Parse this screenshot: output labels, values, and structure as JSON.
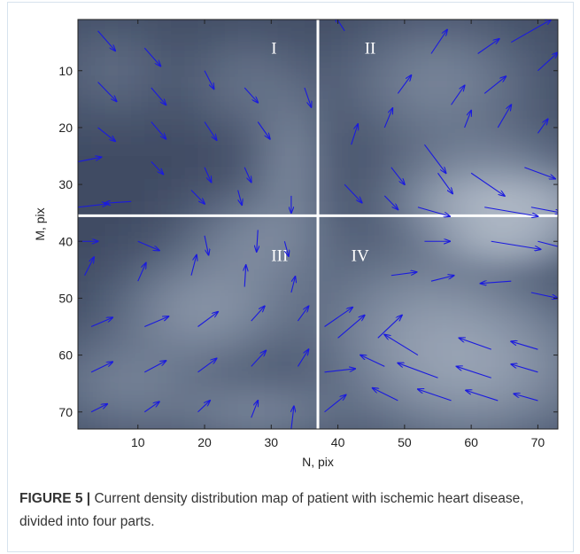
{
  "caption": {
    "label": "FIGURE 5 |",
    "text": "Current density distribution map of patient with ischemic heart disease, divided into four parts."
  },
  "chart_data": {
    "type": "heatmap",
    "title": "",
    "xlabel": "N, pix",
    "ylabel": "M, pix",
    "xlim": [
      1,
      73
    ],
    "ylim": [
      1,
      73
    ],
    "y_inverted": true,
    "xticks": [
      10,
      20,
      30,
      40,
      50,
      60,
      70
    ],
    "yticks": [
      10,
      20,
      30,
      40,
      50,
      60,
      70
    ],
    "colormap": "bone (dark = low, light = high)",
    "divider": {
      "n": 37,
      "m": 35.5,
      "color": "#ffffff"
    },
    "quadrant_labels": [
      {
        "text": "I",
        "n": 30,
        "m": 7
      },
      {
        "text": "II",
        "n": 44,
        "m": 7
      },
      {
        "text": "III",
        "n": 30,
        "m": 43.5
      },
      {
        "text": "IV",
        "n": 42,
        "m": 43.5
      }
    ],
    "intensity_blobs": [
      {
        "n": 66,
        "m": 34,
        "sn": 8,
        "sm": 3.5,
        "a": 1.0
      },
      {
        "n": 62,
        "m": 30,
        "sn": 9,
        "sm": 6,
        "a": 0.45
      },
      {
        "n": 55,
        "m": 12,
        "sn": 9,
        "sm": 7,
        "a": 0.35
      },
      {
        "n": 65,
        "m": 40,
        "sn": 6,
        "sm": 3,
        "a": 0.75
      },
      {
        "n": 60,
        "m": 62,
        "sn": 11,
        "sm": 8,
        "a": 0.7
      },
      {
        "n": 52,
        "m": 52,
        "sn": 10,
        "sm": 8,
        "a": 0.35
      },
      {
        "n": 20,
        "m": 52,
        "sn": 8,
        "sm": 6,
        "a": 0.5
      },
      {
        "n": 28,
        "m": 40,
        "sn": 7,
        "sm": 6,
        "a": 0.35
      },
      {
        "n": 8,
        "m": 65,
        "sn": 8,
        "sm": 6,
        "a": 0.3
      },
      {
        "n": 26,
        "m": 12,
        "sn": 6,
        "sm": 6,
        "a": 0.18
      },
      {
        "n": 6,
        "m": 10,
        "sn": 6,
        "sm": 6,
        "a": 0.15
      },
      {
        "n": 33,
        "m": 26,
        "sn": 4,
        "sm": 8,
        "a": 0.3
      },
      {
        "n": 28,
        "m": 70,
        "sn": 8,
        "sm": 4,
        "a": 0.3
      }
    ],
    "arrow_color": "#1a1adf",
    "arrows": [
      {
        "n": 4,
        "m": 3,
        "dn": 2.6,
        "dm": 3.5
      },
      {
        "n": 11,
        "m": 6,
        "dn": 2.4,
        "dm": 3.2
      },
      {
        "n": 4,
        "m": 12,
        "dn": 2.8,
        "dm": 3.4
      },
      {
        "n": 12,
        "m": 13,
        "dn": 2.2,
        "dm": 3.0
      },
      {
        "n": 20,
        "m": 10,
        "dn": 1.4,
        "dm": 3.2
      },
      {
        "n": 26,
        "m": 13,
        "dn": 2.0,
        "dm": 2.6
      },
      {
        "n": 35,
        "m": 13,
        "dn": 1.0,
        "dm": 3.4
      },
      {
        "n": 4,
        "m": 20,
        "dn": 2.6,
        "dm": 2.4
      },
      {
        "n": 12,
        "m": 19,
        "dn": 2.2,
        "dm": 3.0
      },
      {
        "n": 20,
        "m": 19,
        "dn": 1.8,
        "dm": 3.2
      },
      {
        "n": 28,
        "m": 19,
        "dn": 1.8,
        "dm": 3.0
      },
      {
        "n": 1,
        "m": 26,
        "dn": 3.5,
        "dm": -0.8
      },
      {
        "n": 12,
        "m": 26,
        "dn": 1.8,
        "dm": 2.2
      },
      {
        "n": 20,
        "m": 27,
        "dn": 1.0,
        "dm": 2.6
      },
      {
        "n": 26,
        "m": 27,
        "dn": 1.0,
        "dm": 2.6
      },
      {
        "n": 1,
        "m": 34,
        "dn": 4.5,
        "dm": -0.6
      },
      {
        "n": 9,
        "m": 33,
        "dn": -4.0,
        "dm": 0.3
      },
      {
        "n": 18,
        "m": 31,
        "dn": 2.0,
        "dm": 2.4
      },
      {
        "n": 25,
        "m": 31,
        "dn": 0.6,
        "dm": 2.6
      },
      {
        "n": 33,
        "m": 32,
        "dn": 0.0,
        "dm": 3.0
      },
      {
        "n": 41,
        "m": 3,
        "dn": -1.4,
        "dm": -2.6
      },
      {
        "n": 54,
        "m": 7,
        "dn": 2.4,
        "dm": -4.2
      },
      {
        "n": 61,
        "m": 7,
        "dn": 3.2,
        "dm": -2.6
      },
      {
        "n": 66,
        "m": 5,
        "dn": 6.0,
        "dm": -4.0
      },
      {
        "n": 49,
        "m": 14,
        "dn": 2.0,
        "dm": -3.2
      },
      {
        "n": 57,
        "m": 16,
        "dn": 2.0,
        "dm": -3.4
      },
      {
        "n": 62,
        "m": 14,
        "dn": 3.2,
        "dm": -3.0
      },
      {
        "n": 70,
        "m": 10,
        "dn": 3.0,
        "dm": -3.2
      },
      {
        "n": 42,
        "m": 23,
        "dn": 1.0,
        "dm": -3.6
      },
      {
        "n": 47,
        "m": 20,
        "dn": 1.2,
        "dm": -3.4
      },
      {
        "n": 53,
        "m": 23,
        "dn": 3.2,
        "dm": 5.0
      },
      {
        "n": 59,
        "m": 20,
        "dn": 1.0,
        "dm": -3.0
      },
      {
        "n": 64,
        "m": 20,
        "dn": 2.0,
        "dm": -4.0
      },
      {
        "n": 70,
        "m": 21,
        "dn": 1.5,
        "dm": -2.5
      },
      {
        "n": 48,
        "m": 27,
        "dn": 2.0,
        "dm": 3.0
      },
      {
        "n": 55,
        "m": 28,
        "dn": 2.2,
        "dm": 3.6
      },
      {
        "n": 60,
        "m": 28,
        "dn": 5.0,
        "dm": 4.0
      },
      {
        "n": 68,
        "m": 27,
        "dn": 4.6,
        "dm": 2.0
      },
      {
        "n": 41,
        "m": 30,
        "dn": 2.6,
        "dm": 3.2
      },
      {
        "n": 47,
        "m": 32,
        "dn": 2.0,
        "dm": 2.4
      },
      {
        "n": 52,
        "m": 34,
        "dn": 4.8,
        "dm": 1.6
      },
      {
        "n": 62,
        "m": 34,
        "dn": 8.0,
        "dm": 1.6
      },
      {
        "n": 69,
        "m": 34,
        "dn": 4.5,
        "dm": 1.0
      },
      {
        "n": 1,
        "m": 40,
        "dn": 3.0,
        "dm": 0.0
      },
      {
        "n": 10,
        "m": 40,
        "dn": 3.2,
        "dm": 1.6
      },
      {
        "n": 20,
        "m": 39,
        "dn": 0.6,
        "dm": 3.4
      },
      {
        "n": 28,
        "m": 38,
        "dn": -0.2,
        "dm": 3.8
      },
      {
        "n": 32,
        "m": 40,
        "dn": 0.6,
        "dm": 2.6
      },
      {
        "n": 2,
        "m": 46,
        "dn": 1.4,
        "dm": -3.2
      },
      {
        "n": 10,
        "m": 47,
        "dn": 1.2,
        "dm": -3.2
      },
      {
        "n": 18,
        "m": 46,
        "dn": 0.8,
        "dm": -3.6
      },
      {
        "n": 26,
        "m": 48,
        "dn": 0.2,
        "dm": -3.8
      },
      {
        "n": 33,
        "m": 49,
        "dn": 0.6,
        "dm": -2.8
      },
      {
        "n": 53,
        "m": 40,
        "dn": 3.8,
        "dm": 0.0
      },
      {
        "n": 63,
        "m": 40,
        "dn": 7.4,
        "dm": 1.4
      },
      {
        "n": 70,
        "m": 40,
        "dn": 4.0,
        "dm": 1.2
      },
      {
        "n": 48,
        "m": 46,
        "dn": 3.8,
        "dm": -0.6
      },
      {
        "n": 54,
        "m": 47,
        "dn": 3.4,
        "dm": -1.0
      },
      {
        "n": 66,
        "m": 47,
        "dn": -4.6,
        "dm": 0.4
      },
      {
        "n": 69,
        "m": 49,
        "dn": 4.0,
        "dm": 1.0
      },
      {
        "n": 3,
        "m": 55,
        "dn": 3.2,
        "dm": -1.6
      },
      {
        "n": 11,
        "m": 55,
        "dn": 3.6,
        "dm": -1.8
      },
      {
        "n": 19,
        "m": 55,
        "dn": 3.0,
        "dm": -2.6
      },
      {
        "n": 27,
        "m": 54,
        "dn": 2.0,
        "dm": -2.6
      },
      {
        "n": 34,
        "m": 54,
        "dn": 1.6,
        "dm": -2.6
      },
      {
        "n": 38,
        "m": 55,
        "dn": 4.2,
        "dm": -3.4
      },
      {
        "n": 40,
        "m": 57,
        "dn": 4.0,
        "dm": -4.0
      },
      {
        "n": 46,
        "m": 57,
        "dn": 3.6,
        "dm": -4.0
      },
      {
        "n": 52,
        "m": 60,
        "dn": -5.0,
        "dm": -3.6
      },
      {
        "n": 63,
        "m": 59,
        "dn": -4.8,
        "dm": -2.0
      },
      {
        "n": 70,
        "m": 59,
        "dn": -4.0,
        "dm": -1.4
      },
      {
        "n": 3,
        "m": 63,
        "dn": 3.2,
        "dm": -1.8
      },
      {
        "n": 11,
        "m": 63,
        "dn": 3.2,
        "dm": -2.0
      },
      {
        "n": 19,
        "m": 63,
        "dn": 2.8,
        "dm": -2.4
      },
      {
        "n": 27,
        "m": 62,
        "dn": 2.2,
        "dm": -2.8
      },
      {
        "n": 34,
        "m": 62,
        "dn": 1.6,
        "dm": -3.0
      },
      {
        "n": 38,
        "m": 63,
        "dn": 4.6,
        "dm": -0.6
      },
      {
        "n": 47,
        "m": 62,
        "dn": -3.6,
        "dm": -2.0
      },
      {
        "n": 55,
        "m": 64,
        "dn": -6.0,
        "dm": -2.6
      },
      {
        "n": 63,
        "m": 64,
        "dn": -5.2,
        "dm": -2.0
      },
      {
        "n": 70,
        "m": 63,
        "dn": -4.0,
        "dm": -1.4
      },
      {
        "n": 3,
        "m": 70,
        "dn": 2.4,
        "dm": -1.4
      },
      {
        "n": 11,
        "m": 70,
        "dn": 2.2,
        "dm": -1.8
      },
      {
        "n": 19,
        "m": 70,
        "dn": 1.8,
        "dm": -2.0
      },
      {
        "n": 27,
        "m": 71,
        "dn": 1.0,
        "dm": -3.0
      },
      {
        "n": 33,
        "m": 73,
        "dn": 0.4,
        "dm": -4.0
      },
      {
        "n": 38,
        "m": 70,
        "dn": 3.2,
        "dm": -3.0
      },
      {
        "n": 49,
        "m": 68,
        "dn": -3.8,
        "dm": -2.2
      },
      {
        "n": 57,
        "m": 68,
        "dn": -5.0,
        "dm": -2.0
      },
      {
        "n": 64,
        "m": 68,
        "dn": -4.8,
        "dm": -1.8
      },
      {
        "n": 70,
        "m": 68,
        "dn": -3.6,
        "dm": -1.2
      }
    ]
  }
}
